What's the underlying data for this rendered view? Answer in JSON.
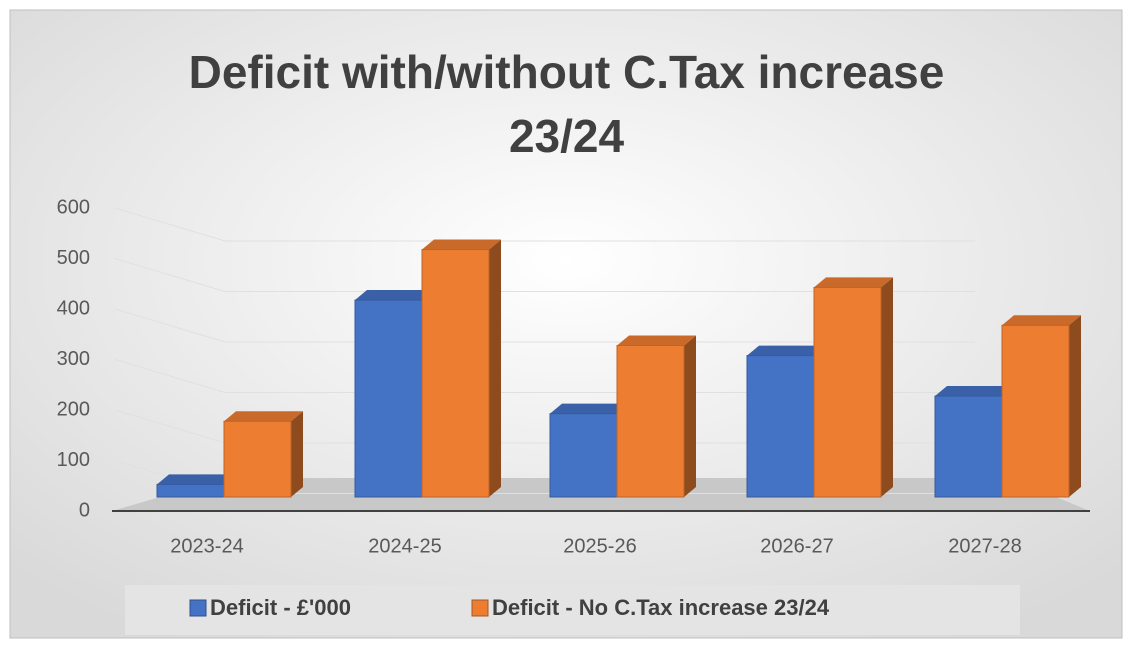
{
  "chart_data": {
    "type": "bar",
    "title": "Deficit with/without C.Tax increase 23/24",
    "categories": [
      "2023-24",
      "2024-25",
      "2025-26",
      "2026-27",
      "2027-28"
    ],
    "series": [
      {
        "name": "Deficit - £'000",
        "color": "#4472c4",
        "values": [
          25,
          390,
          165,
          280,
          200
        ]
      },
      {
        "name": "Deficit - No C.Tax increase 23/24",
        "color": "#ed7d31",
        "values": [
          150,
          490,
          300,
          415,
          340
        ]
      }
    ],
    "ylim": [
      0,
      600
    ],
    "yticks": [
      0,
      100,
      200,
      300,
      400,
      500,
      600
    ],
    "grid": true,
    "legend": "bottom"
  }
}
